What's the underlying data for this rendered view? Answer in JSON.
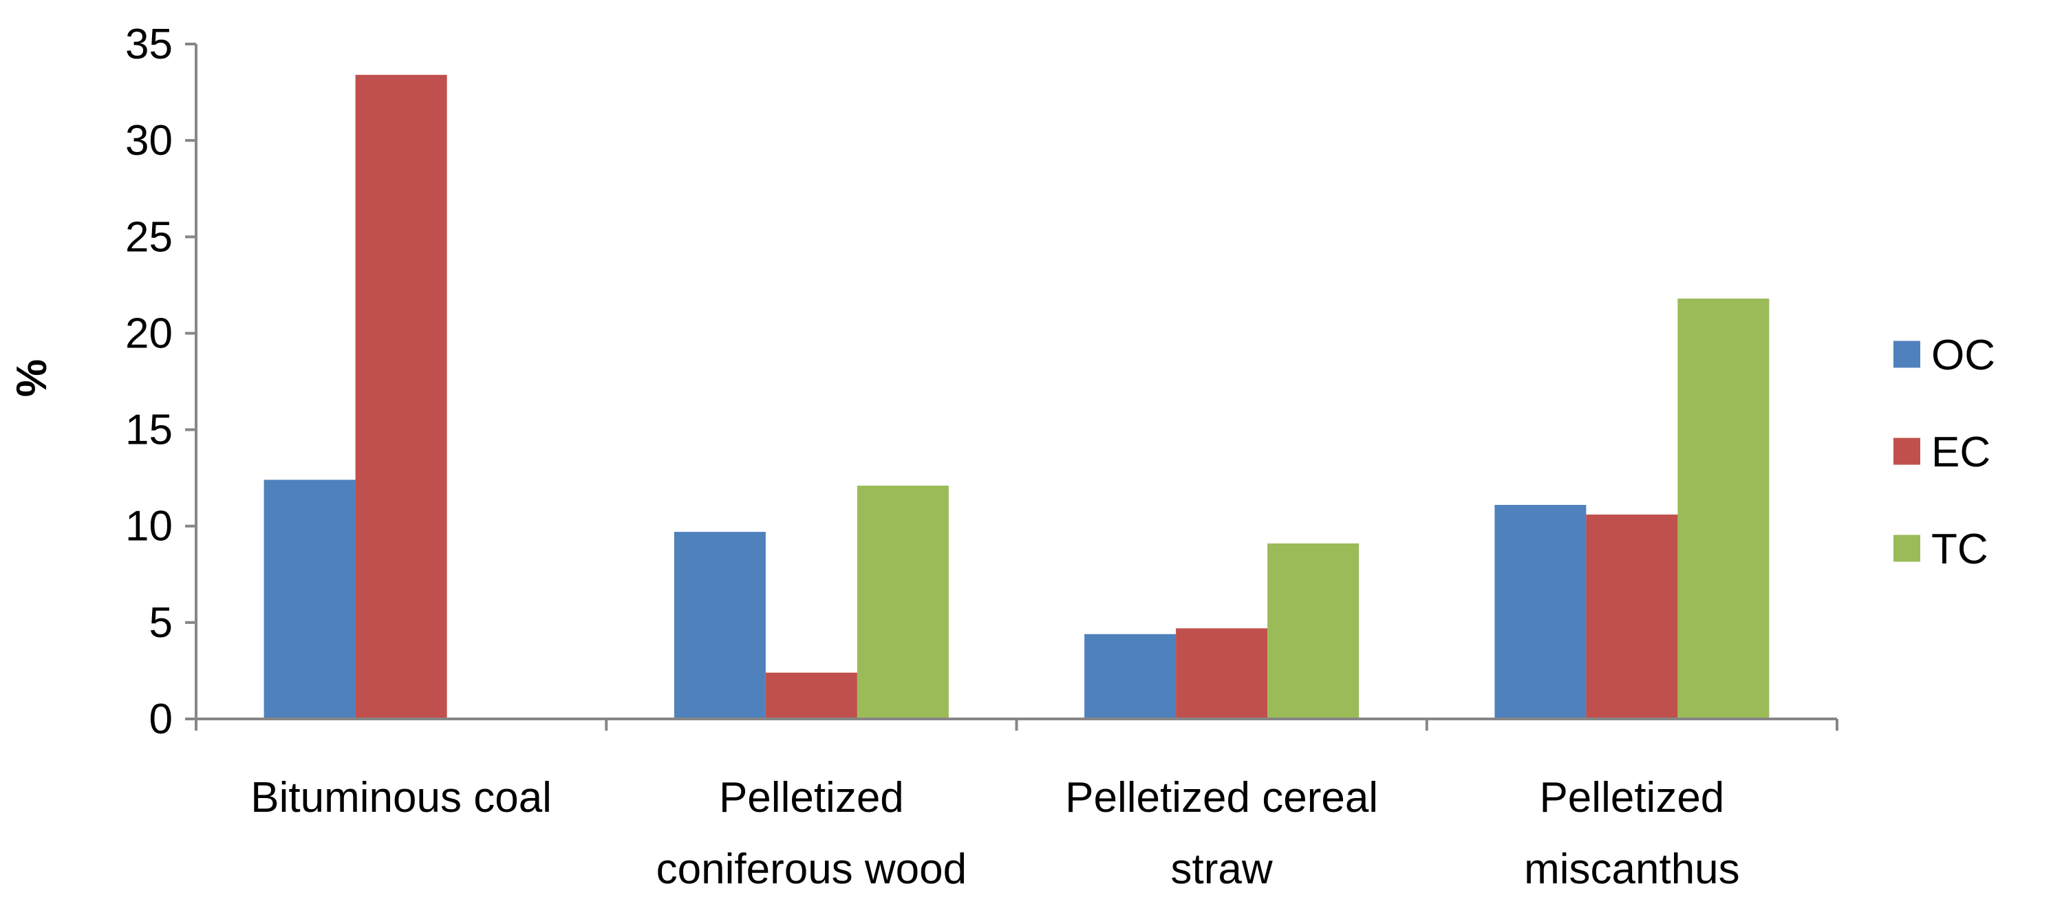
{
  "chart_data": {
    "type": "bar",
    "title": "",
    "xlabel": "",
    "ylabel": "%",
    "ylim": [
      0,
      35
    ],
    "ytick_step": 5,
    "yticks": [
      "0",
      "5",
      "10",
      "15",
      "20",
      "25",
      "30",
      "35"
    ],
    "grid": false,
    "legend_position": "right",
    "categories": [
      [
        "Bituminous coal"
      ],
      [
        "Pelletized",
        "coniferous wood"
      ],
      [
        "Pelletized cereal",
        "straw"
      ],
      [
        "Pelletized",
        "miscanthus"
      ]
    ],
    "series": [
      {
        "name": "OC",
        "color": "#4F81BD",
        "values": [
          12.4,
          9.7,
          4.4,
          11.1
        ]
      },
      {
        "name": "EC",
        "color": "#C0504D",
        "values": [
          33.4,
          2.4,
          4.7,
          10.6
        ]
      },
      {
        "name": "TC",
        "color": "#9BBB59",
        "values": [
          0,
          12.1,
          9.1,
          21.8
        ]
      }
    ]
  }
}
